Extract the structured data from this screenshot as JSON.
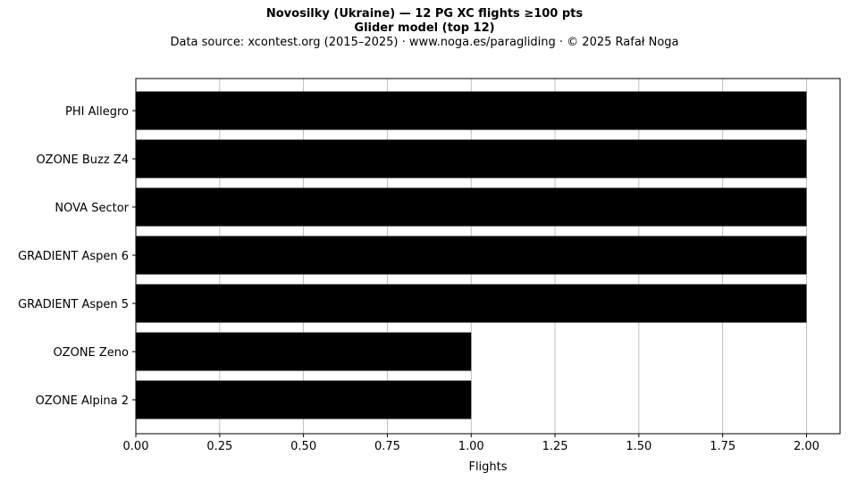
{
  "title": {
    "line1": "Novosilky (Ukraine)  —  12 PG XC flights ≥100 pts",
    "line2": "Glider model (top 12)",
    "line3": "Data source: xcontest.org (2015–2025)  ·  www.noga.es/paragliding  ·  © 2025 Rafał Noga"
  },
  "chart_data": {
    "type": "bar",
    "orientation": "horizontal",
    "categories": [
      "PHI Allegro",
      "OZONE Buzz Z4",
      "NOVA Sector",
      "GRADIENT Aspen 6",
      "GRADIENT Aspen 5",
      "OZONE Zeno",
      "OZONE Alpina 2"
    ],
    "values": [
      2,
      2,
      2,
      2,
      2,
      1,
      1
    ],
    "xlabel": "Flights",
    "ylabel": "",
    "xlim": [
      0,
      2.1
    ],
    "xticks": [
      0,
      0.25,
      0.5,
      0.75,
      1.0,
      1.25,
      1.5,
      1.75,
      2.0
    ],
    "xtick_labels": [
      "0.00",
      "0.25",
      "0.50",
      "0.75",
      "1.00",
      "1.25",
      "1.50",
      "1.75",
      "2.00"
    ],
    "grid": "x-axis vertical lines",
    "bar_color": "#000000",
    "grid_color": "#b0b0b0"
  }
}
